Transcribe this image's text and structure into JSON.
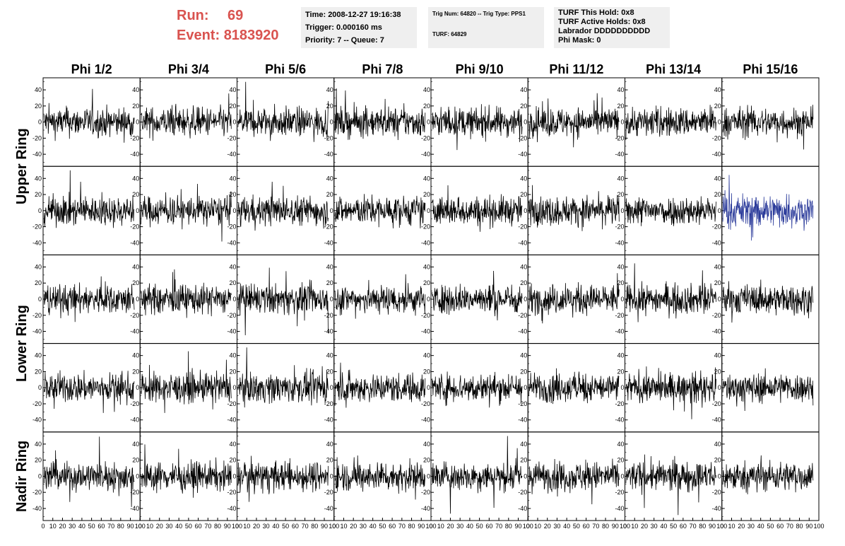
{
  "header": {
    "run_label": "Run:",
    "run_value": "69",
    "event_label": "Event:",
    "event_value": "8183920",
    "time": "Time: 2008-12-27 19:16:38",
    "trigger": "Trigger: 0.000160 ms",
    "priority": "Priority: 7 -- Queue: 7",
    "trig_num": "Trig Num: 64820 -- Trig Type: PPS1",
    "turf": "TURF: 64829",
    "turf_this_hold": "TURF This Hold: 0x8",
    "turf_active_holds": "TURF Active Holds: 0x8",
    "labrador": "Labrador DDDDDDDDDD",
    "phi_mask": "Phi Mask: 0"
  },
  "chart_data": {
    "type": "line",
    "columns": [
      "Phi 1/2",
      "Phi 3/4",
      "Phi 5/6",
      "Phi 7/8",
      "Phi 9/10",
      "Phi 11/12",
      "Phi 13/14",
      "Phi 15/16"
    ],
    "rings": [
      "Upper Ring",
      "Lower Ring",
      "Nadir Ring"
    ],
    "panel_rows": 5,
    "xlim": [
      0,
      100
    ],
    "x_ticks": [
      0,
      10,
      20,
      30,
      40,
      50,
      60,
      70,
      80,
      90,
      100
    ],
    "ylim": [
      -55,
      55
    ],
    "y_ticks": [
      -40,
      -20,
      0,
      20,
      40
    ],
    "samples_per_trace": 260,
    "trace_color": "#000000",
    "highlight_color": "#2a3a9a",
    "highlight_panel": {
      "row": 1,
      "col": 7
    },
    "note_traces": "noise waveforms, amplitude roughly +/-20 with spikes to +/-45"
  }
}
